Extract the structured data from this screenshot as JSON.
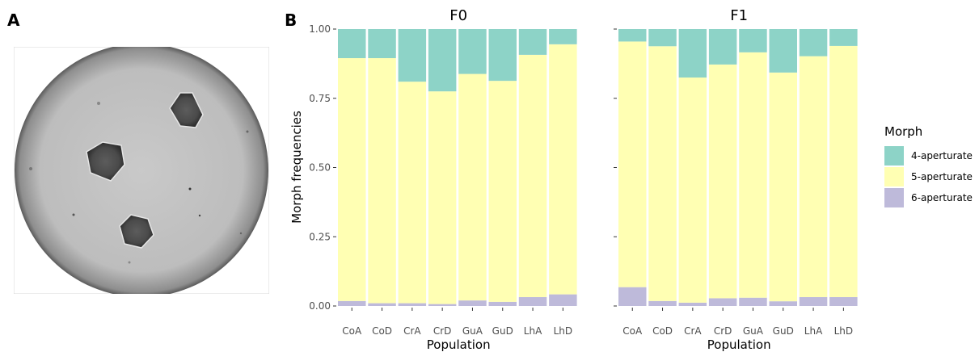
{
  "panel_labels": {
    "a": "A",
    "b": "B"
  },
  "colors": {
    "4-aperturate": "#8dd3c7",
    "5-aperturate": "#ffffb3",
    "6-aperturate": "#bebada"
  },
  "chart_data": {
    "type": "bar",
    "stacked": true,
    "xlabel": "Population",
    "ylabel": "Morph frequencies",
    "ylim": [
      0,
      1
    ],
    "yticks": [
      "0.00",
      "0.25",
      "0.50",
      "0.75",
      "1.00"
    ],
    "legend": {
      "title": "Morph",
      "position": "right",
      "entries": [
        "4-aperturate",
        "5-aperturate",
        "6-aperturate"
      ]
    },
    "categories": [
      "CoA",
      "CoD",
      "CrA",
      "CrD",
      "GuA",
      "GuD",
      "LhA",
      "LhD"
    ],
    "facets": [
      {
        "title": "F0",
        "series": [
          {
            "name": "6-aperturate",
            "values": [
              0.018,
              0.01,
              0.01,
              0.007,
              0.02,
              0.015,
              0.032,
              0.042
            ]
          },
          {
            "name": "5-aperturate",
            "values": [
              0.877,
              0.885,
              0.8,
              0.768,
              0.818,
              0.798,
              0.875,
              0.903
            ]
          },
          {
            "name": "4-aperturate",
            "values": [
              0.105,
              0.105,
              0.19,
              0.225,
              0.162,
              0.187,
              0.093,
              0.055
            ]
          }
        ]
      },
      {
        "title": "F1",
        "series": [
          {
            "name": "6-aperturate",
            "values": [
              0.068,
              0.018,
              0.012,
              0.028,
              0.03,
              0.017,
              0.032,
              0.032
            ]
          },
          {
            "name": "5-aperturate",
            "values": [
              0.887,
              0.92,
              0.813,
              0.844,
              0.886,
              0.826,
              0.87,
              0.907
            ]
          },
          {
            "name": "4-aperturate",
            "values": [
              0.045,
              0.062,
              0.175,
              0.128,
              0.084,
              0.157,
              0.098,
              0.061
            ]
          }
        ]
      }
    ]
  }
}
